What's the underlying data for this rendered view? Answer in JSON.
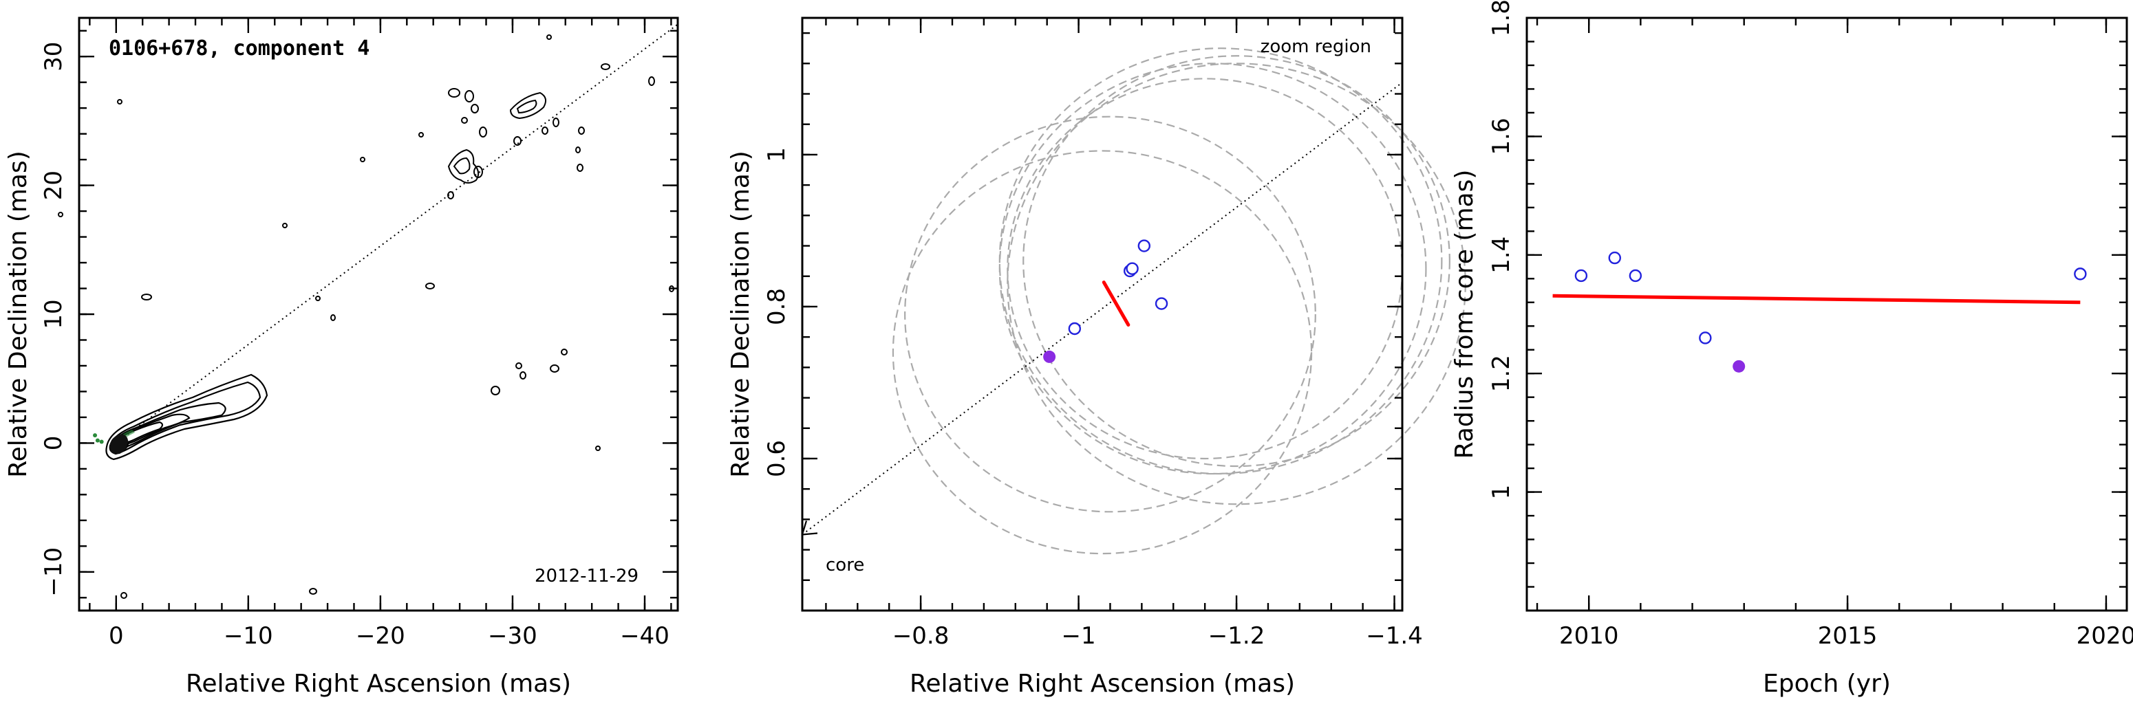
{
  "chart_data": [
    {
      "type": "contour_map",
      "title": "0106+678, component 4",
      "annotation": "2012-11-29",
      "xlabel": "Relative Right Ascension (mas)",
      "ylabel": "Relative Declination (mas)",
      "xlim": [
        2.8,
        -42.5
      ],
      "ylim": [
        -13,
        33
      ],
      "xticks": [
        0,
        -10,
        -20,
        -30,
        -40
      ],
      "yticks": [
        -10,
        0,
        10,
        20,
        30
      ],
      "xticklabels": [
        "0",
        "−10",
        "−20",
        "−30",
        "−40"
      ],
      "yticklabels": [
        "−10",
        "0",
        "10",
        "20",
        "30"
      ],
      "reference_line": {
        "x": [
          0,
          -42.5
        ],
        "y": [
          0,
          32.5
        ],
        "style": "dotted"
      },
      "component_markers": [
        {
          "x": 1.1,
          "y": 0.1
        },
        {
          "x": 1.6,
          "y": 0.6
        },
        {
          "x": 1.4,
          "y": 0.2
        }
      ]
    },
    {
      "type": "scatter",
      "annotation": "zoom region",
      "core_label": "core",
      "xlabel": "Relative Right Ascension (mas)",
      "ylabel": "Relative Declination (mas)",
      "xlim": [
        -0.65,
        -1.41
      ],
      "ylim": [
        0.4,
        1.18
      ],
      "xticks": [
        -0.8,
        -1,
        -1.2,
        -1.4
      ],
      "yticks": [
        0.6,
        0.8,
        1
      ],
      "xticklabels": [
        "−0.8",
        "−1",
        "−1.2",
        "−1.4"
      ],
      "yticklabels": [
        "0.6",
        "0.8",
        "1"
      ],
      "reference_line": {
        "x": [
          -0.65,
          -1.41
        ],
        "y": [
          0.5,
          1.095
        ],
        "style": "dotted",
        "arrow_toward": "core"
      },
      "series": [
        {
          "marker": "open",
          "color": "#2222dd",
          "points": [
            {
              "x": -0.995,
              "y": 0.771
            },
            {
              "x": -1.065,
              "y": 0.847
            },
            {
              "x": -1.068,
              "y": 0.85
            },
            {
              "x": -1.083,
              "y": 0.88
            },
            {
              "x": -1.105,
              "y": 0.804
            }
          ]
        },
        {
          "marker": "filled",
          "color": "#8a2be2",
          "points": [
            {
              "x": -0.963,
              "y": 0.734
            }
          ]
        }
      ],
      "error_circles": [
        {
          "cx": -1.03,
          "cy": 0.74,
          "r": 0.265
        },
        {
          "cx": -1.04,
          "cy": 0.79,
          "r": 0.26
        },
        {
          "cx": -1.16,
          "cy": 0.85,
          "r": 0.25
        },
        {
          "cx": -1.17,
          "cy": 0.85,
          "r": 0.27
        },
        {
          "cx": -1.18,
          "cy": 0.86,
          "r": 0.28
        },
        {
          "cx": -1.2,
          "cy": 0.86,
          "r": 0.27
        },
        {
          "cx": -1.2,
          "cy": 0.83,
          "r": 0.29
        }
      ],
      "fit_segment": {
        "x": [
          -1.032,
          -1.063
        ],
        "y": [
          0.832,
          0.776
        ],
        "color": "#ff0000"
      }
    },
    {
      "type": "scatter",
      "xlabel": "Epoch (yr)",
      "ylabel": "Radius from core (mas)",
      "xlim": [
        2008.8,
        2020.4
      ],
      "ylim": [
        0.8,
        1.8
      ],
      "xticks": [
        2010,
        2015,
        2020
      ],
      "yticks": [
        1,
        1.2,
        1.4,
        1.6,
        1.8
      ],
      "xticklabels": [
        "2010",
        "2015",
        "2020"
      ],
      "yticklabels": [
        "1",
        "1.2",
        "1.4",
        "1.6",
        "1.8"
      ],
      "series": [
        {
          "marker": "open",
          "color": "#2222dd",
          "points": [
            {
              "x": 2009.85,
              "y": 1.365
            },
            {
              "x": 2010.5,
              "y": 1.395
            },
            {
              "x": 2010.9,
              "y": 1.365
            },
            {
              "x": 2012.25,
              "y": 1.26
            },
            {
              "x": 2019.5,
              "y": 1.368
            }
          ]
        },
        {
          "marker": "filled",
          "color": "#8a2be2",
          "points": [
            {
              "x": 2012.9,
              "y": 1.212
            }
          ]
        }
      ],
      "fit_line": {
        "x": [
          2009.3,
          2019.5
        ],
        "y": [
          1.331,
          1.32
        ],
        "color": "#ff0000"
      }
    }
  ]
}
